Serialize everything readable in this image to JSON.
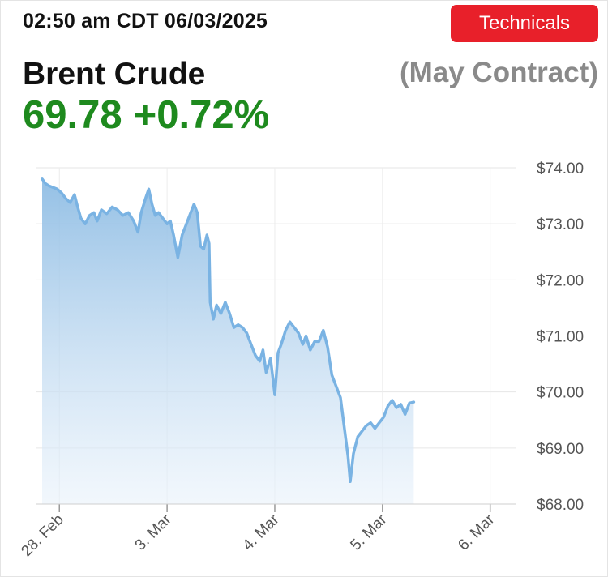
{
  "header": {
    "timestamp": "02:50 am CDT 06/03/2025",
    "technicals_label": "Technicals",
    "title": "Brent Crude",
    "contract": "(May Contract)",
    "price": "69.78",
    "change": "+0.72%",
    "accent_color": "#e8202a",
    "price_color": "#1e8a1e"
  },
  "chart_data": {
    "type": "area",
    "title": "",
    "xlabel": "",
    "ylabel": "",
    "ylim": [
      68.0,
      74.0
    ],
    "grid": true,
    "y_ticks": [
      "$74.00",
      "$73.00",
      "$72.00",
      "$71.00",
      "$70.00",
      "$69.00",
      "$68.00"
    ],
    "y_tick_values": [
      74,
      73,
      72,
      71,
      70,
      69,
      68
    ],
    "x_ticks": [
      "28. Feb",
      "3. Mar",
      "4. Mar",
      "5. Mar",
      "6. Mar"
    ],
    "x_tick_positions": [
      0.16,
      1.16,
      2.16,
      3.16,
      4.16
    ],
    "xlim": [
      0,
      4.2
    ],
    "line_color": "#7ab3e3",
    "series": [
      {
        "values": [
          [
            0.0,
            73.8
          ],
          [
            0.03,
            73.72
          ],
          [
            0.06,
            73.68
          ],
          [
            0.1,
            73.65
          ],
          [
            0.14,
            73.62
          ],
          [
            0.18,
            73.55
          ],
          [
            0.22,
            73.45
          ],
          [
            0.26,
            73.38
          ],
          [
            0.3,
            73.52
          ],
          [
            0.33,
            73.3
          ],
          [
            0.36,
            73.1
          ],
          [
            0.4,
            73.0
          ],
          [
            0.44,
            73.15
          ],
          [
            0.48,
            73.2
          ],
          [
            0.51,
            73.05
          ],
          [
            0.55,
            73.25
          ],
          [
            0.6,
            73.18
          ],
          [
            0.65,
            73.3
          ],
          [
            0.7,
            73.25
          ],
          [
            0.75,
            73.15
          ],
          [
            0.8,
            73.2
          ],
          [
            0.85,
            73.05
          ],
          [
            0.89,
            72.85
          ],
          [
            0.92,
            73.2
          ],
          [
            0.96,
            73.45
          ],
          [
            0.99,
            73.62
          ],
          [
            1.02,
            73.35
          ],
          [
            1.05,
            73.15
          ],
          [
            1.08,
            73.2
          ],
          [
            1.12,
            73.1
          ],
          [
            1.16,
            73.0
          ],
          [
            1.19,
            73.05
          ],
          [
            1.22,
            72.8
          ],
          [
            1.26,
            72.4
          ],
          [
            1.3,
            72.8
          ],
          [
            1.34,
            73.0
          ],
          [
            1.38,
            73.2
          ],
          [
            1.41,
            73.35
          ],
          [
            1.44,
            73.2
          ],
          [
            1.47,
            72.6
          ],
          [
            1.5,
            72.55
          ],
          [
            1.53,
            72.8
          ],
          [
            1.55,
            72.65
          ],
          [
            1.56,
            71.6
          ],
          [
            1.59,
            71.3
          ],
          [
            1.62,
            71.55
          ],
          [
            1.66,
            71.4
          ],
          [
            1.7,
            71.6
          ],
          [
            1.74,
            71.4
          ],
          [
            1.78,
            71.15
          ],
          [
            1.82,
            71.2
          ],
          [
            1.86,
            71.15
          ],
          [
            1.9,
            71.05
          ],
          [
            1.94,
            70.85
          ],
          [
            1.98,
            70.65
          ],
          [
            2.02,
            70.55
          ],
          [
            2.05,
            70.75
          ],
          [
            2.08,
            70.35
          ],
          [
            2.12,
            70.6
          ],
          [
            2.16,
            69.95
          ],
          [
            2.19,
            70.7
          ],
          [
            2.22,
            70.85
          ],
          [
            2.26,
            71.1
          ],
          [
            2.3,
            71.25
          ],
          [
            2.34,
            71.15
          ],
          [
            2.38,
            71.05
          ],
          [
            2.42,
            70.85
          ],
          [
            2.45,
            71.0
          ],
          [
            2.49,
            70.75
          ],
          [
            2.53,
            70.9
          ],
          [
            2.57,
            70.9
          ],
          [
            2.61,
            71.1
          ],
          [
            2.65,
            70.8
          ],
          [
            2.69,
            70.3
          ],
          [
            2.73,
            70.1
          ],
          [
            2.77,
            69.9
          ],
          [
            2.81,
            69.3
          ],
          [
            2.84,
            68.85
          ],
          [
            2.86,
            68.4
          ],
          [
            2.89,
            68.9
          ],
          [
            2.93,
            69.2
          ],
          [
            2.97,
            69.3
          ],
          [
            3.01,
            69.4
          ],
          [
            3.05,
            69.45
          ],
          [
            3.09,
            69.35
          ],
          [
            3.13,
            69.45
          ],
          [
            3.17,
            69.55
          ],
          [
            3.21,
            69.75
          ],
          [
            3.25,
            69.85
          ],
          [
            3.29,
            69.72
          ],
          [
            3.33,
            69.78
          ],
          [
            3.37,
            69.6
          ],
          [
            3.41,
            69.8
          ],
          [
            3.45,
            69.82
          ]
        ]
      }
    ]
  }
}
